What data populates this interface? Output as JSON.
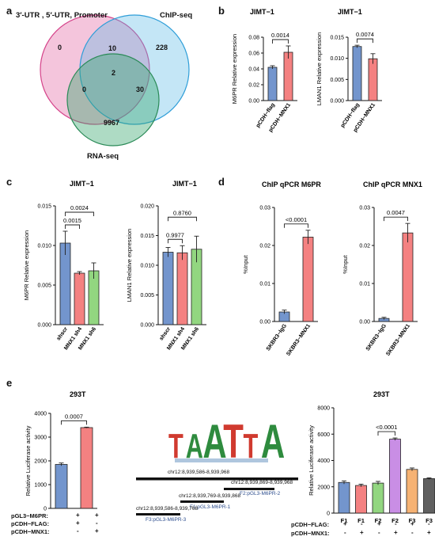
{
  "panels": {
    "a": "a",
    "b": "b",
    "c": "c",
    "d": "d",
    "e": "e"
  },
  "venn": {
    "set1": "3′-UTR , 5′-UTR, Promoter",
    "set2": "ChIP-seq",
    "set3": "RNA-seq",
    "only1": "0",
    "only2": "228",
    "only3": "9967",
    "s12": "10",
    "s13": "0",
    "s23": "30",
    "s123": "2",
    "colors": {
      "set1": "#e05a9b",
      "set2": "#3aa0d8",
      "set3": "#2e9c5e"
    }
  },
  "motif": {
    "letters": [
      "T",
      "A",
      "A",
      "T",
      "T",
      "A"
    ],
    "colors": {
      "T": "#d03a2f",
      "A": "#2e8b3e",
      "C": "#2f5fb3",
      "G": "#e6a11d"
    }
  },
  "regions": {
    "main": "chr12:8,939,586-8,939,968",
    "f2_coords": "chr12:8,939,869-8,939,968",
    "f2_name": "F2:pGL3-M6PR-2",
    "f1_coords": "chr12:8,939,769-8,939,868",
    "f1_name": "F1:pGL3-M6PR-1",
    "f3_coords": "chr12:8,939,586-8,939,768",
    "f3_name": "F3:pGL3-M6PR-3"
  },
  "e_left_rows": {
    "r1_label": "pGL3−M6PR:",
    "r1_vals": [
      "+",
      "+"
    ],
    "r2_label": "pCDH−FLAG:",
    "r2_vals": [
      "+",
      "-"
    ],
    "r3_label": "pCDH−MNX1:",
    "r3_vals": [
      "-",
      "+"
    ]
  },
  "e_right_rows": {
    "r1_label": "pCDH−FLAG:",
    "r1_vals": [
      "+",
      "-",
      "+",
      "-",
      "+",
      "-"
    ],
    "r2_label": "pCDH−MNX1:",
    "r2_vals": [
      "-",
      "+",
      "-",
      "+",
      "-",
      "+"
    ]
  },
  "chart_data": [
    {
      "id": "b1",
      "type": "bar",
      "title": "JIMT−1",
      "ylabel": "M6PR Relative expression",
      "categories": [
        "pCDH−flag",
        "pCDH−MNX1"
      ],
      "values": [
        0.042,
        0.061
      ],
      "errors": [
        0.002,
        0.008
      ],
      "ylim": [
        0,
        0.08
      ],
      "yticks": [
        "0.00",
        "0.02",
        "0.04",
        "0.06",
        "0.08"
      ],
      "comparisons": [
        {
          "from": 0,
          "to": 1,
          "label": "0.0014"
        }
      ],
      "colors": [
        "#5b83c4",
        "#f26b6b"
      ],
      "rotate_x": true
    },
    {
      "id": "b2",
      "type": "bar",
      "title": "JIMT−1",
      "ylabel": "LMAN1 Relative expression",
      "categories": [
        "pCDH−flag",
        "pCDH−MNX1"
      ],
      "values": [
        0.0128,
        0.0099
      ],
      "errors": [
        0.0003,
        0.0012
      ],
      "ylim": [
        0,
        0.015
      ],
      "yticks": [
        "0.000",
        "0.005",
        "0.010",
        "0.015"
      ],
      "comparisons": [
        {
          "from": 0,
          "to": 1,
          "label": "0.0074"
        }
      ],
      "colors": [
        "#5b83c4",
        "#f26b6b"
      ],
      "rotate_x": true
    },
    {
      "id": "c1",
      "type": "bar",
      "title": "JIMT−1",
      "ylabel": "M6PR Relative expression",
      "categories": [
        "shscr",
        "MNX1 sh4",
        "MNX1 sh6"
      ],
      "values": [
        0.0103,
        0.0065,
        0.0068
      ],
      "errors": [
        0.0015,
        0.0002,
        0.001
      ],
      "ylim": [
        0,
        0.015
      ],
      "yticks": [
        "0.000",
        "0.005",
        "0.010",
        "0.015"
      ],
      "comparisons": [
        {
          "from": 0,
          "to": 1,
          "label": "0.0015"
        },
        {
          "from": 0,
          "to": 2,
          "label": "0.0024"
        }
      ],
      "colors": [
        "#5b83c4",
        "#f26b6b",
        "#7fcf6a"
      ],
      "rotate_x": true
    },
    {
      "id": "c2",
      "type": "bar",
      "title": "JIMT−1",
      "ylabel": "LMAN1 Relative expression",
      "categories": [
        "shscr",
        "MNX1 sh4",
        "MNX1 sh6"
      ],
      "values": [
        0.0122,
        0.0121,
        0.0127
      ],
      "errors": [
        0.0008,
        0.0012,
        0.0022
      ],
      "ylim": [
        0,
        0.02
      ],
      "yticks": [
        "0.000",
        "0.005",
        "0.010",
        "0.015",
        "0.020"
      ],
      "comparisons": [
        {
          "from": 0,
          "to": 1,
          "label": "0.9977"
        },
        {
          "from": 0,
          "to": 2,
          "label": "0.8760"
        }
      ],
      "colors": [
        "#5b83c4",
        "#f26b6b",
        "#7fcf6a"
      ],
      "rotate_x": true
    },
    {
      "id": "d1",
      "type": "bar",
      "title": "ChIP qPCR M6PR",
      "ylabel": "%Input",
      "categories": [
        "SKBR3−IgG",
        "SKBR3−MNX1"
      ],
      "values": [
        0.0025,
        0.0222
      ],
      "errors": [
        0.0005,
        0.0018
      ],
      "ylim": [
        0,
        0.03
      ],
      "yticks": [
        "0.00",
        "0.01",
        "0.02",
        "0.03"
      ],
      "comparisons": [
        {
          "from": 0,
          "to": 1,
          "label": "<0.0001"
        }
      ],
      "colors": [
        "#5b83c4",
        "#f26b6b"
      ],
      "rotate_x": true
    },
    {
      "id": "d2",
      "type": "bar",
      "title": "ChIP qPCR MNX1",
      "ylabel": "%Input",
      "categories": [
        "SKBR3−IgG",
        "SKBR3−MNX1"
      ],
      "values": [
        0.0008,
        0.0233
      ],
      "errors": [
        0.0003,
        0.0025
      ],
      "ylim": [
        0,
        0.03
      ],
      "yticks": [
        "0.00",
        "0.01",
        "0.02",
        "0.03"
      ],
      "comparisons": [
        {
          "from": 0,
          "to": 1,
          "label": "0.0047"
        }
      ],
      "colors": [
        "#5b83c4",
        "#f26b6b"
      ],
      "rotate_x": true
    },
    {
      "id": "e1",
      "type": "bar",
      "title": "293T",
      "ylabel": "Relative Luciferase activity",
      "categories": [
        "",
        ""
      ],
      "values": [
        1850,
        3400
      ],
      "errors": [
        60,
        20
      ],
      "ylim": [
        0,
        4000
      ],
      "yticks": [
        "0",
        "1000",
        "2000",
        "3000",
        "4000"
      ],
      "comparisons": [
        {
          "from": 0,
          "to": 1,
          "label": "0.0007"
        }
      ],
      "colors": [
        "#5b83c4",
        "#f26b6b"
      ],
      "rotate_x": false
    },
    {
      "id": "e2",
      "type": "bar",
      "title": "293T",
      "ylabel": "Relative Luciferase activity",
      "categories": [
        "F1",
        "F1",
        "F2",
        "F2",
        "F3",
        "F3"
      ],
      "values": [
        2330,
        2100,
        2280,
        5620,
        3320,
        2620
      ],
      "errors": [
        120,
        100,
        130,
        90,
        110,
        60
      ],
      "ylim": [
        0,
        8000
      ],
      "yticks": [
        "0",
        "2000",
        "4000",
        "6000",
        "8000"
      ],
      "comparisons": [
        {
          "from": 2,
          "to": 3,
          "label": "<0.0001"
        }
      ],
      "colors": [
        "#5b83c4",
        "#f26b6b",
        "#7fcf6a",
        "#c07ae0",
        "#f5a45a",
        "#444444"
      ],
      "rotate_x": false
    }
  ]
}
